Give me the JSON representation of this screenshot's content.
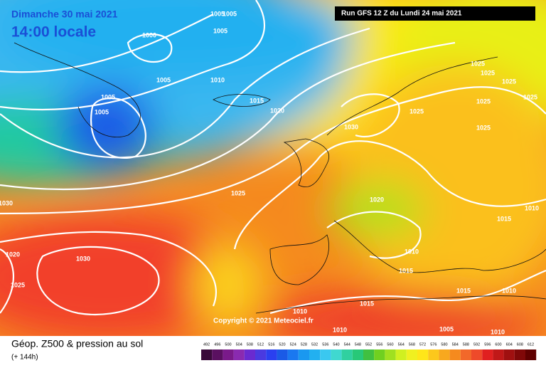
{
  "header": {
    "date": "Dimanche 30 mai 2021",
    "time": "14:00 locale",
    "run": "Run GFS 12 Z du Lundi 24 mai 2021"
  },
  "copyright": "Copyright © 2021 Meteociel.fr",
  "footer": {
    "title": "Géop. Z500 & pression au sol",
    "lead": "(+ 144h)"
  },
  "isobar_labels": [
    1005,
    1005,
    1005,
    1000,
    1005,
    1005,
    1005,
    1010,
    1015,
    1020,
    1030,
    1025,
    1025,
    1025,
    1025,
    1025,
    1025,
    1025,
    1025,
    1020,
    1030,
    1020,
    1030,
    1025,
    1010,
    1010,
    1015,
    1015,
    1015,
    1015,
    1010,
    1010,
    1010,
    1005,
    1010
  ],
  "scale": [
    492,
    496,
    500,
    504,
    508,
    512,
    516,
    520,
    524,
    528,
    532,
    536,
    540,
    544,
    548,
    552,
    556,
    560,
    564,
    568,
    572,
    576,
    580,
    584,
    588,
    592,
    596,
    600,
    604,
    608,
    612
  ]
}
